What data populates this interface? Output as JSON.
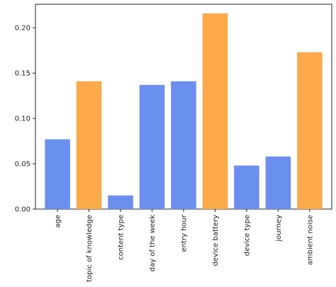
{
  "chart_data": {
    "type": "bar",
    "categories": [
      "age",
      "topic of knowledge",
      "content type",
      "day of the week",
      "entry hour",
      "device battery",
      "device type",
      "journey",
      "ambient noise"
    ],
    "values": [
      0.077,
      0.141,
      0.015,
      0.137,
      0.141,
      0.216,
      0.048,
      0.058,
      0.173
    ],
    "colors": [
      "#6a8ff0",
      "#fba94a",
      "#6a8ff0",
      "#6a8ff0",
      "#6a8ff0",
      "#fba94a",
      "#6a8ff0",
      "#6a8ff0",
      "#fba94a"
    ],
    "ylim": [
      0,
      0.226
    ],
    "yticks": [
      {
        "value": 0,
        "label": "0.00"
      },
      {
        "value": 0.05,
        "label": "0.05"
      },
      {
        "value": 0.1,
        "label": "0.10"
      },
      {
        "value": 0.15,
        "label": "0.15"
      },
      {
        "value": 0.2,
        "label": "0.20"
      }
    ],
    "grid": false
  }
}
